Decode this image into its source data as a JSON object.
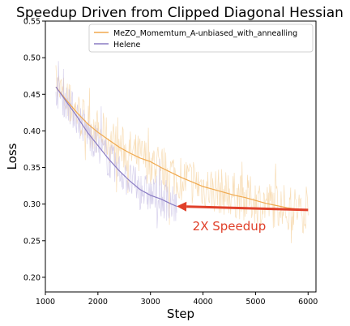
{
  "chart_data": {
    "type": "line",
    "title": "Speedup Driven from Clipped Diagonal Hessian",
    "xlabel": "Step",
    "ylabel": "Loss",
    "xlim": [
      1000,
      6150
    ],
    "ylim": [
      0.18,
      0.55
    ],
    "xticks": [
      1000,
      2000,
      3000,
      4000,
      5000,
      6000
    ],
    "yticks": [
      0.2,
      0.25,
      0.3,
      0.35,
      0.4,
      0.45,
      0.5,
      0.55
    ],
    "grid": false,
    "legend_position": "top-right",
    "series": [
      {
        "name": "MeZO_Momemtum_A-unbiased_with_annealling",
        "color": "#f0a94e",
        "raw_color": "#f5d3a0",
        "x": [
          1200,
          1400,
          1600,
          1800,
          2000,
          2200,
          2400,
          2600,
          2800,
          3000,
          3200,
          3400,
          3600,
          3800,
          4000,
          4200,
          4400,
          4600,
          4800,
          5000,
          5200,
          5400,
          5600,
          5800,
          6000
        ],
        "y": [
          0.46,
          0.442,
          0.425,
          0.41,
          0.398,
          0.388,
          0.378,
          0.37,
          0.363,
          0.358,
          0.35,
          0.343,
          0.336,
          0.33,
          0.324,
          0.32,
          0.316,
          0.312,
          0.309,
          0.305,
          0.301,
          0.298,
          0.295,
          0.293,
          0.292
        ]
      },
      {
        "name": "Helene",
        "color": "#8a7cc4",
        "raw_color": "#c9c2e6",
        "x": [
          1200,
          1400,
          1600,
          1800,
          2000,
          2200,
          2400,
          2600,
          2800,
          3000,
          3200,
          3400,
          3500
        ],
        "y": [
          0.46,
          0.44,
          0.42,
          0.398,
          0.38,
          0.362,
          0.346,
          0.332,
          0.32,
          0.312,
          0.307,
          0.3,
          0.297
        ]
      }
    ],
    "annotations": [
      {
        "text": "2X Speedup",
        "color": "#e0402a",
        "arrow_from": [
          6000,
          0.292
        ],
        "arrow_to": [
          3500,
          0.297
        ],
        "text_at": [
          4500,
          0.27
        ]
      }
    ]
  }
}
